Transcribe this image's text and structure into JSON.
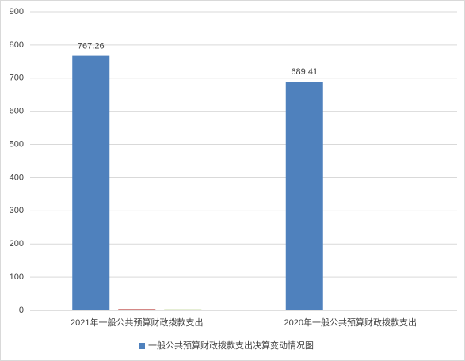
{
  "chart_data": {
    "type": "bar",
    "categories": [
      "2021年一般公共预算财政拨款支出",
      "2020年一般公共预算财政拨款支出"
    ],
    "series": [
      {
        "name": "一般公共预算财政拨款支出决算变动情况图",
        "color": "#4f81bd",
        "values": [
          767.26,
          689.41
        ],
        "data_labels": true
      },
      {
        "color": "#c0504d",
        "values": [
          4,
          null
        ]
      },
      {
        "color": "#9bbb59",
        "values": [
          3,
          null
        ]
      }
    ],
    "ylim": [
      0,
      900
    ],
    "yticks": [
      0,
      100,
      200,
      300,
      400,
      500,
      600,
      700,
      800,
      900
    ],
    "grid": true,
    "legend": "bottom"
  }
}
